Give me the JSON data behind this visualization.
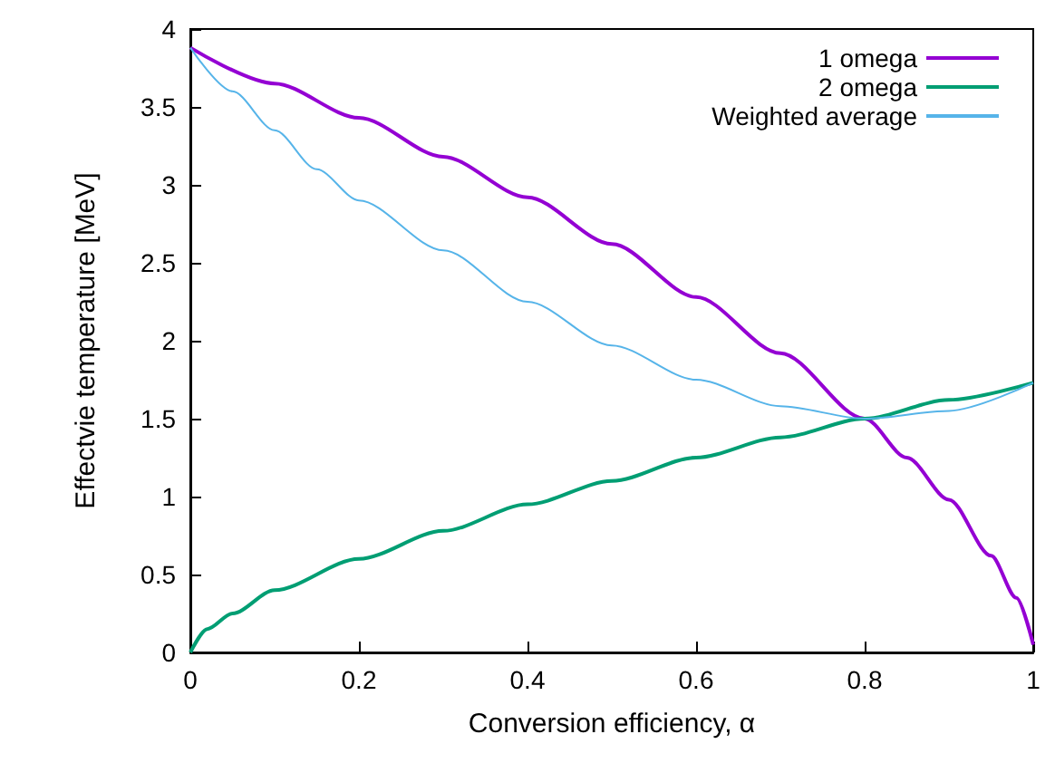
{
  "chart_data": {
    "type": "line",
    "xlabel": "Conversion efficiency, α",
    "ylabel": "Effectvie temperature [MeV]",
    "xlim": [
      0,
      1
    ],
    "xticks": [
      0,
      0.2,
      0.4,
      0.6,
      0.8,
      1
    ],
    "ylim": [
      0,
      4
    ],
    "yticks": [
      0,
      0.5,
      1,
      1.5,
      2,
      2.5,
      3,
      3.5,
      4
    ],
    "grid": false,
    "legend": "top right",
    "marker": "none",
    "line_style": "solid",
    "series": [
      {
        "name": "1 omega",
        "color": "#9400d3",
        "x": [
          0,
          0.1,
          0.2,
          0.3,
          0.4,
          0.5,
          0.6,
          0.7,
          0.8,
          0.85,
          0.9,
          0.95,
          0.98,
          1
        ],
        "values": [
          3.88,
          3.65,
          3.43,
          3.18,
          2.92,
          2.62,
          2.28,
          1.92,
          1.5,
          1.25,
          0.98,
          0.62,
          0.35,
          0.05
        ]
      },
      {
        "name": "2 omega",
        "color": "#009e73",
        "x": [
          0,
          0.02,
          0.05,
          0.1,
          0.2,
          0.3,
          0.4,
          0.5,
          0.6,
          0.7,
          0.8,
          0.9,
          1
        ],
        "values": [
          0,
          0.15,
          0.25,
          0.4,
          0.6,
          0.78,
          0.95,
          1.1,
          1.25,
          1.38,
          1.5,
          1.62,
          1.73
        ]
      },
      {
        "name": "Weighted average",
        "color": "#56b4e9",
        "x": [
          0,
          0.05,
          0.1,
          0.15,
          0.2,
          0.3,
          0.4,
          0.5,
          0.6,
          0.7,
          0.8,
          0.9,
          1
        ],
        "values": [
          3.88,
          3.6,
          3.35,
          3.1,
          2.9,
          2.58,
          2.25,
          1.97,
          1.75,
          1.58,
          1.5,
          1.55,
          1.73
        ]
      }
    ]
  }
}
